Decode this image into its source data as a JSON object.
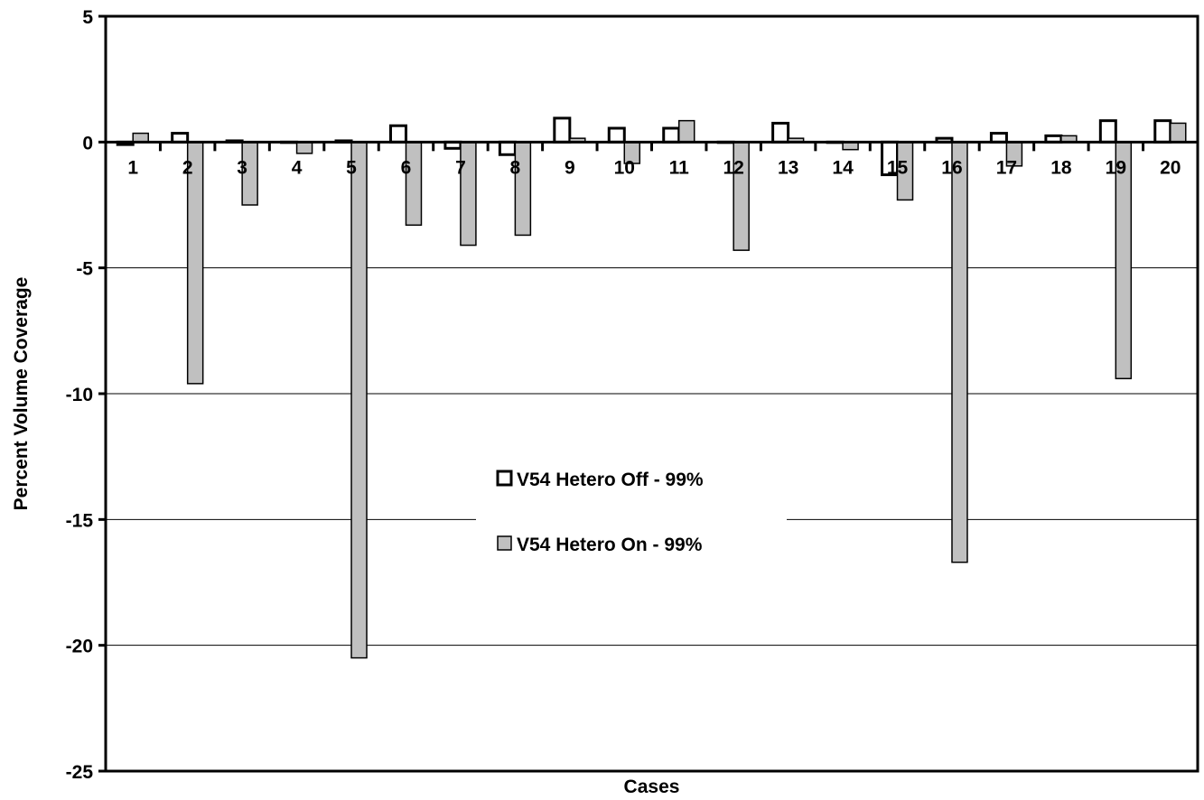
{
  "chart_data": {
    "type": "bar",
    "title": "",
    "xlabel": "Cases",
    "ylabel": "Percent Volume Coverage",
    "ylim": [
      -25,
      5
    ],
    "yticks": [
      "5",
      "0",
      "-5",
      "-10",
      "-15",
      "-20",
      "-25"
    ],
    "grid": true,
    "legend_position": "center",
    "categories": [
      "1",
      "2",
      "3",
      "4",
      "5",
      "6",
      "7",
      "8",
      "9",
      "10",
      "11",
      "12",
      "13",
      "14",
      "15",
      "16",
      "17",
      "18",
      "19",
      "20"
    ],
    "series": [
      {
        "name": "V54 Hetero Off - 99%",
        "color": "#ffffff",
        "values": [
          -0.1,
          0.35,
          0.05,
          0.0,
          0.05,
          0.65,
          -0.25,
          -0.5,
          0.95,
          0.55,
          0.55,
          0.0,
          0.75,
          0.0,
          -1.3,
          0.15,
          0.35,
          0.25,
          0.85,
          0.85
        ]
      },
      {
        "name": "V54 Hetero On - 99%",
        "color": "#c0c0c0",
        "values": [
          0.35,
          -9.6,
          -2.5,
          -0.45,
          -20.5,
          -3.3,
          -4.1,
          -3.7,
          0.15,
          -0.85,
          0.85,
          -4.3,
          0.15,
          -0.3,
          -2.3,
          -16.7,
          -0.95,
          0.25,
          -9.4,
          0.75
        ]
      }
    ]
  }
}
